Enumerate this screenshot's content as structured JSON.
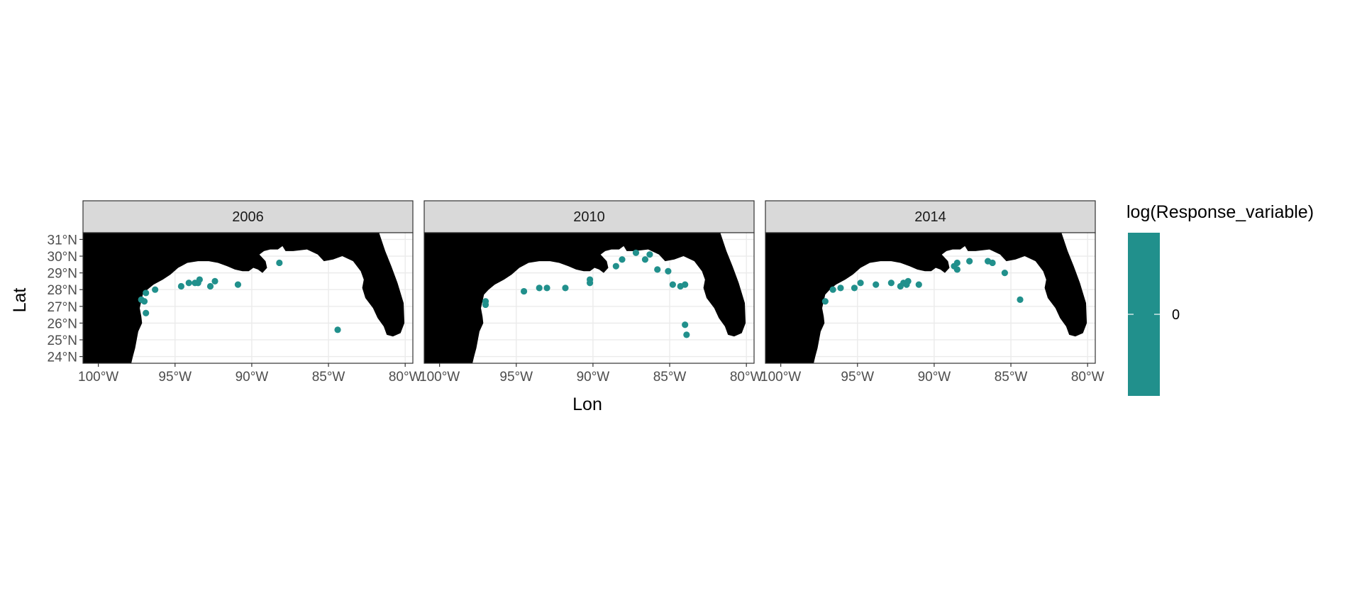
{
  "chart_data": {
    "type": "scatter",
    "subtype": "faceted map (Gulf of Mexico)",
    "xlabel": "Lon",
    "ylabel": "Lat",
    "xlim": [
      -101,
      -79.5
    ],
    "ylim": [
      23.6,
      31.4
    ],
    "x_ticks": [
      -100,
      -95,
      -90,
      -85,
      -80
    ],
    "x_tick_labels": [
      "100°W",
      "95°W",
      "90°W",
      "85°W",
      "80°W"
    ],
    "y_ticks": [
      24,
      25,
      26,
      27,
      28,
      29,
      30,
      31
    ],
    "y_tick_labels": [
      "24°N",
      "25°N",
      "26°N",
      "27°N",
      "28°N",
      "29°N",
      "30°N",
      "31°N"
    ],
    "grid": true,
    "land_color": "#000000",
    "point_color": "#21908C",
    "panels": [
      {
        "facet": "2006",
        "points": [
          {
            "lon": -97.2,
            "lat": 27.4
          },
          {
            "lon": -96.9,
            "lat": 27.8
          },
          {
            "lon": -97.0,
            "lat": 27.3
          },
          {
            "lon": -96.9,
            "lat": 26.6
          },
          {
            "lon": -96.3,
            "lat": 28.0
          },
          {
            "lon": -94.6,
            "lat": 28.2
          },
          {
            "lon": -94.1,
            "lat": 28.4
          },
          {
            "lon": -93.7,
            "lat": 28.4
          },
          {
            "lon": -93.5,
            "lat": 28.4
          },
          {
            "lon": -93.4,
            "lat": 28.6
          },
          {
            "lon": -92.7,
            "lat": 28.2
          },
          {
            "lon": -92.4,
            "lat": 28.5
          },
          {
            "lon": -90.9,
            "lat": 28.3
          },
          {
            "lon": -88.2,
            "lat": 29.6
          },
          {
            "lon": -84.4,
            "lat": 25.6
          }
        ]
      },
      {
        "facet": "2010",
        "points": [
          {
            "lon": -97.0,
            "lat": 27.3
          },
          {
            "lon": -97.0,
            "lat": 27.1
          },
          {
            "lon": -94.5,
            "lat": 27.9
          },
          {
            "lon": -93.5,
            "lat": 28.1
          },
          {
            "lon": -93.0,
            "lat": 28.1
          },
          {
            "lon": -91.8,
            "lat": 28.1
          },
          {
            "lon": -90.2,
            "lat": 28.4
          },
          {
            "lon": -90.2,
            "lat": 28.6
          },
          {
            "lon": -88.5,
            "lat": 29.4
          },
          {
            "lon": -88.1,
            "lat": 29.8
          },
          {
            "lon": -87.2,
            "lat": 30.2
          },
          {
            "lon": -86.6,
            "lat": 29.8
          },
          {
            "lon": -86.3,
            "lat": 30.1
          },
          {
            "lon": -85.8,
            "lat": 29.2
          },
          {
            "lon": -85.1,
            "lat": 29.1
          },
          {
            "lon": -84.8,
            "lat": 28.3
          },
          {
            "lon": -84.3,
            "lat": 28.2
          },
          {
            "lon": -84.0,
            "lat": 28.3
          },
          {
            "lon": -84.0,
            "lat": 25.9
          },
          {
            "lon": -83.9,
            "lat": 25.3
          }
        ]
      },
      {
        "facet": "2014",
        "points": [
          {
            "lon": -97.1,
            "lat": 27.3
          },
          {
            "lon": -96.6,
            "lat": 28.0
          },
          {
            "lon": -96.1,
            "lat": 28.1
          },
          {
            "lon": -95.2,
            "lat": 28.1
          },
          {
            "lon": -94.8,
            "lat": 28.4
          },
          {
            "lon": -93.8,
            "lat": 28.3
          },
          {
            "lon": -92.8,
            "lat": 28.4
          },
          {
            "lon": -92.2,
            "lat": 28.2
          },
          {
            "lon": -92.0,
            "lat": 28.4
          },
          {
            "lon": -91.8,
            "lat": 28.3
          },
          {
            "lon": -91.7,
            "lat": 28.5
          },
          {
            "lon": -91.0,
            "lat": 28.3
          },
          {
            "lon": -88.7,
            "lat": 29.4
          },
          {
            "lon": -88.5,
            "lat": 29.6
          },
          {
            "lon": -88.5,
            "lat": 29.2
          },
          {
            "lon": -87.7,
            "lat": 29.7
          },
          {
            "lon": -86.5,
            "lat": 29.7
          },
          {
            "lon": -86.2,
            "lat": 29.6
          },
          {
            "lon": -85.4,
            "lat": 29.0
          },
          {
            "lon": -84.4,
            "lat": 27.4
          }
        ]
      }
    ],
    "legend": {
      "title": "log(Response_variable)",
      "type": "colorbar",
      "labels": [
        "0"
      ],
      "color": "#21908C",
      "position": "right"
    }
  }
}
